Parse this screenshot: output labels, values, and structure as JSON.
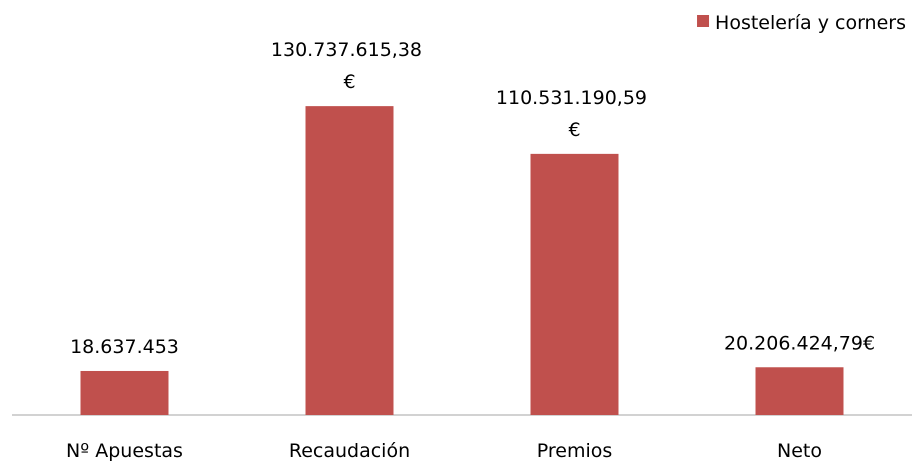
{
  "chart_data": {
    "type": "bar",
    "categories": [
      "Nº Apuestas",
      "Recaudación",
      "Premios",
      "Neto"
    ],
    "series": [
      {
        "name": "Hostelería y corners",
        "color": "#c0504d",
        "values": [
          18637453,
          130737615.38,
          110531190.59,
          20206424.79
        ],
        "value_labels": [
          "18.637.453",
          "130.737.615,38 €",
          "110.531.190,59 €",
          "20.206.424,79€"
        ]
      }
    ],
    "ylim": [
      0,
      160000000
    ],
    "legend": "top-right"
  }
}
